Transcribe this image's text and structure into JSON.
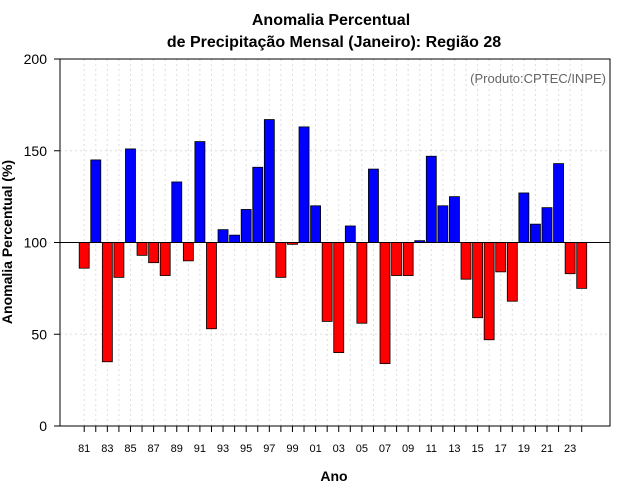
{
  "chart_data": {
    "type": "bar",
    "title_line1": "Anomalia Percentual",
    "title_line2": "de Precipitação Mensal (Janeiro): Região 28",
    "xlabel": "Ano",
    "ylabel": "Anomalia Percentual (%)",
    "annotation": "(Produto:CPTEC/INPE)",
    "ylim": [
      0,
      200
    ],
    "yticks": [
      0,
      50,
      100,
      150,
      200
    ],
    "baseline": 100,
    "categories": [
      "81",
      "82",
      "83",
      "84",
      "85",
      "86",
      "87",
      "88",
      "89",
      "90",
      "91",
      "92",
      "93",
      "94",
      "95",
      "96",
      "97",
      "98",
      "99",
      "00",
      "01",
      "02",
      "03",
      "04",
      "05",
      "06",
      "07",
      "08",
      "09",
      "10",
      "11",
      "12",
      "13",
      "14",
      "15",
      "16",
      "17",
      "18",
      "19",
      "20",
      "21",
      "22",
      "23",
      "24"
    ],
    "values": [
      86,
      145,
      35,
      81,
      151,
      93,
      89,
      82,
      133,
      90,
      155,
      53,
      107,
      104,
      118,
      141,
      167,
      81,
      99,
      163,
      120,
      57,
      40,
      109,
      56,
      140,
      34,
      82,
      82,
      101,
      147,
      120,
      125,
      80,
      59,
      47,
      84,
      68,
      127,
      110,
      119,
      143,
      83,
      75
    ],
    "xtick_labels": [
      "81",
      "83",
      "85",
      "87",
      "89",
      "91",
      "93",
      "95",
      "97",
      "99",
      "01",
      "03",
      "05",
      "07",
      "09",
      "11",
      "13",
      "15",
      "17",
      "19",
      "21",
      "23"
    ],
    "colors": {
      "above": "#0000ff",
      "below": "#ff0000",
      "outline": "#000000",
      "grid": "#dddddd"
    },
    "grid": true
  }
}
